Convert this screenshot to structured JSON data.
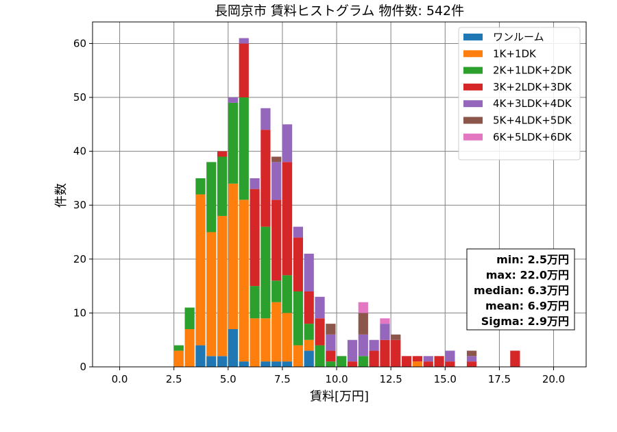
{
  "chart_data": {
    "type": "bar",
    "stacked": true,
    "title": "長岡京市 賃料ヒストグラム  物件数: 542件",
    "xlabel": "賃料[万円]",
    "ylabel": "件数",
    "xlim": [
      -1.25,
      21.5
    ],
    "ylim": [
      0,
      64
    ],
    "xticks": [
      0.0,
      2.5,
      5.0,
      7.5,
      10.0,
      12.5,
      15.0,
      17.5,
      20.0
    ],
    "xtick_labels": [
      "0.0",
      "2.5",
      "5.0",
      "7.5",
      "10.0",
      "12.5",
      "15.0",
      "17.5",
      "20.0"
    ],
    "yticks": [
      0,
      10,
      20,
      30,
      40,
      50,
      60
    ],
    "ytick_labels": [
      "0",
      "10",
      "20",
      "30",
      "40",
      "50",
      "60"
    ],
    "grid": true,
    "bin_width": 0.5,
    "legend_position": "top-right",
    "bins": [
      2.5,
      3.0,
      3.5,
      4.0,
      4.5,
      5.0,
      5.5,
      6.0,
      6.5,
      7.0,
      7.5,
      8.0,
      8.5,
      9.0,
      9.5,
      10.0,
      10.5,
      11.0,
      11.5,
      12.0,
      12.5,
      13.0,
      13.5,
      14.0,
      14.5,
      15.0,
      15.5,
      16.0,
      16.5,
      17.0,
      17.5,
      18.0
    ],
    "series": [
      {
        "name": "ワンルーム",
        "color": "#1f77b4",
        "values": [
          0,
          0,
          4,
          2,
          2,
          7,
          1,
          0,
          1,
          1,
          1,
          0,
          3,
          0,
          0,
          0,
          0,
          0,
          0,
          0,
          0,
          0,
          0,
          0,
          0,
          0,
          0,
          0,
          0,
          0,
          0,
          0
        ]
      },
      {
        "name": "1K+1DK",
        "color": "#ff7f0e",
        "values": [
          3,
          7,
          28,
          23,
          26,
          27,
          30,
          9,
          8,
          11,
          9,
          4,
          2,
          0,
          0,
          0,
          0,
          0,
          0,
          0,
          0,
          0,
          1,
          0,
          0,
          0,
          0,
          0,
          0,
          0,
          0,
          0
        ]
      },
      {
        "name": "2K+1LDK+2DK",
        "color": "#2ca02c",
        "values": [
          1,
          4,
          3,
          13,
          11,
          15,
          19,
          6,
          17,
          4,
          7,
          10,
          3,
          4,
          1,
          2,
          0,
          2,
          0,
          0,
          0,
          0,
          0,
          0,
          0,
          0,
          0,
          0,
          0,
          0,
          0,
          0
        ]
      },
      {
        "name": "3K+2LDK+3DK",
        "color": "#d62728",
        "values": [
          0,
          0,
          0,
          0,
          1,
          0,
          10,
          18,
          18,
          15,
          21,
          10,
          6,
          5,
          2,
          0,
          1,
          0,
          3,
          5,
          5,
          2,
          1,
          1,
          2,
          1,
          0,
          1,
          0,
          0,
          0,
          3
        ]
      },
      {
        "name": "4K+3LDK+4DK",
        "color": "#9467bd",
        "values": [
          0,
          0,
          0,
          0,
          0,
          1,
          1,
          2,
          4,
          7,
          7,
          2,
          7,
          4,
          3,
          0,
          4,
          4,
          2,
          3,
          0,
          0,
          0,
          1,
          0,
          2,
          0,
          1,
          0,
          0,
          0,
          0
        ]
      },
      {
        "name": "5K+4LDK+5DK",
        "color": "#8c564b",
        "values": [
          0,
          0,
          0,
          0,
          0,
          0,
          0,
          0,
          0,
          1,
          0,
          0,
          0,
          0,
          2,
          0,
          0,
          4,
          0,
          0,
          1,
          0,
          0,
          0,
          0,
          0,
          0,
          1,
          0,
          0,
          0,
          0
        ]
      },
      {
        "name": "6K+5LDK+6DK",
        "color": "#e377c2",
        "values": [
          0,
          0,
          0,
          0,
          0,
          0,
          0,
          0,
          0,
          0,
          0,
          0,
          0,
          0,
          0,
          0,
          0,
          2,
          0,
          1,
          0,
          0,
          0,
          0,
          0,
          0,
          0,
          0,
          0,
          0,
          0,
          0
        ]
      }
    ],
    "stats": [
      "min: 2.5万円",
      "max: 22.0万円",
      "median: 6.3万円",
      "mean: 6.9万円",
      "Sigma: 2.9万円"
    ]
  }
}
